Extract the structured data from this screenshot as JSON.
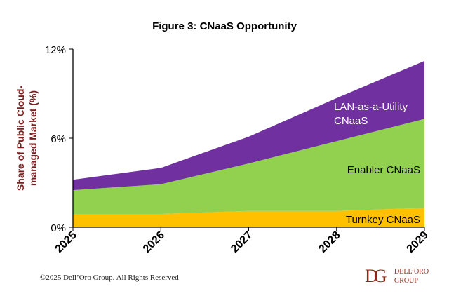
{
  "chart_data": {
    "type": "area",
    "stacked": true,
    "title": "Figure 3: CNaaS Opportunity",
    "ylabel": "Share of Public Cloud-managed Market  (%)",
    "ylabel_lines": [
      "Share of Public Cloud-",
      "managed Market  (%)"
    ],
    "xlabel": "",
    "categories": [
      "2025",
      "2026",
      "2027",
      "2028",
      "2029"
    ],
    "ylim": [
      0,
      12
    ],
    "yticks": [
      0,
      6,
      12
    ],
    "ytick_labels": [
      "0%",
      "6%",
      "12%"
    ],
    "grid": false,
    "legend": "inline labels",
    "series": [
      {
        "name": "Turnkey CNaaS",
        "values": [
          0.9,
          0.9,
          1.1,
          1.1,
          1.3
        ],
        "color": "#FFC000",
        "label_color": "#000000"
      },
      {
        "name": "Enabler CNaaS",
        "values": [
          1.6,
          2.0,
          3.2,
          4.7,
          6.0
        ],
        "color": "#92D050",
        "label_color": "#000000"
      },
      {
        "name": "LAN-as-a-Utility CNaaS",
        "label_lines": [
          "LAN-as-a-Utility",
          "CNaaS"
        ],
        "values": [
          0.7,
          1.1,
          1.8,
          2.9,
          3.9
        ],
        "color": "#7030A0",
        "label_color": "#FFFFFF"
      }
    ]
  },
  "footer": {
    "copyright": "©2025 Dell’Oro Group. All Rights Reserved",
    "logo_text": [
      "DELL’ORO",
      "GROUP"
    ],
    "logo_mark": "DG"
  },
  "colors": {
    "ylabel": "#7B1E1E",
    "logo": "#8B2A1A"
  }
}
